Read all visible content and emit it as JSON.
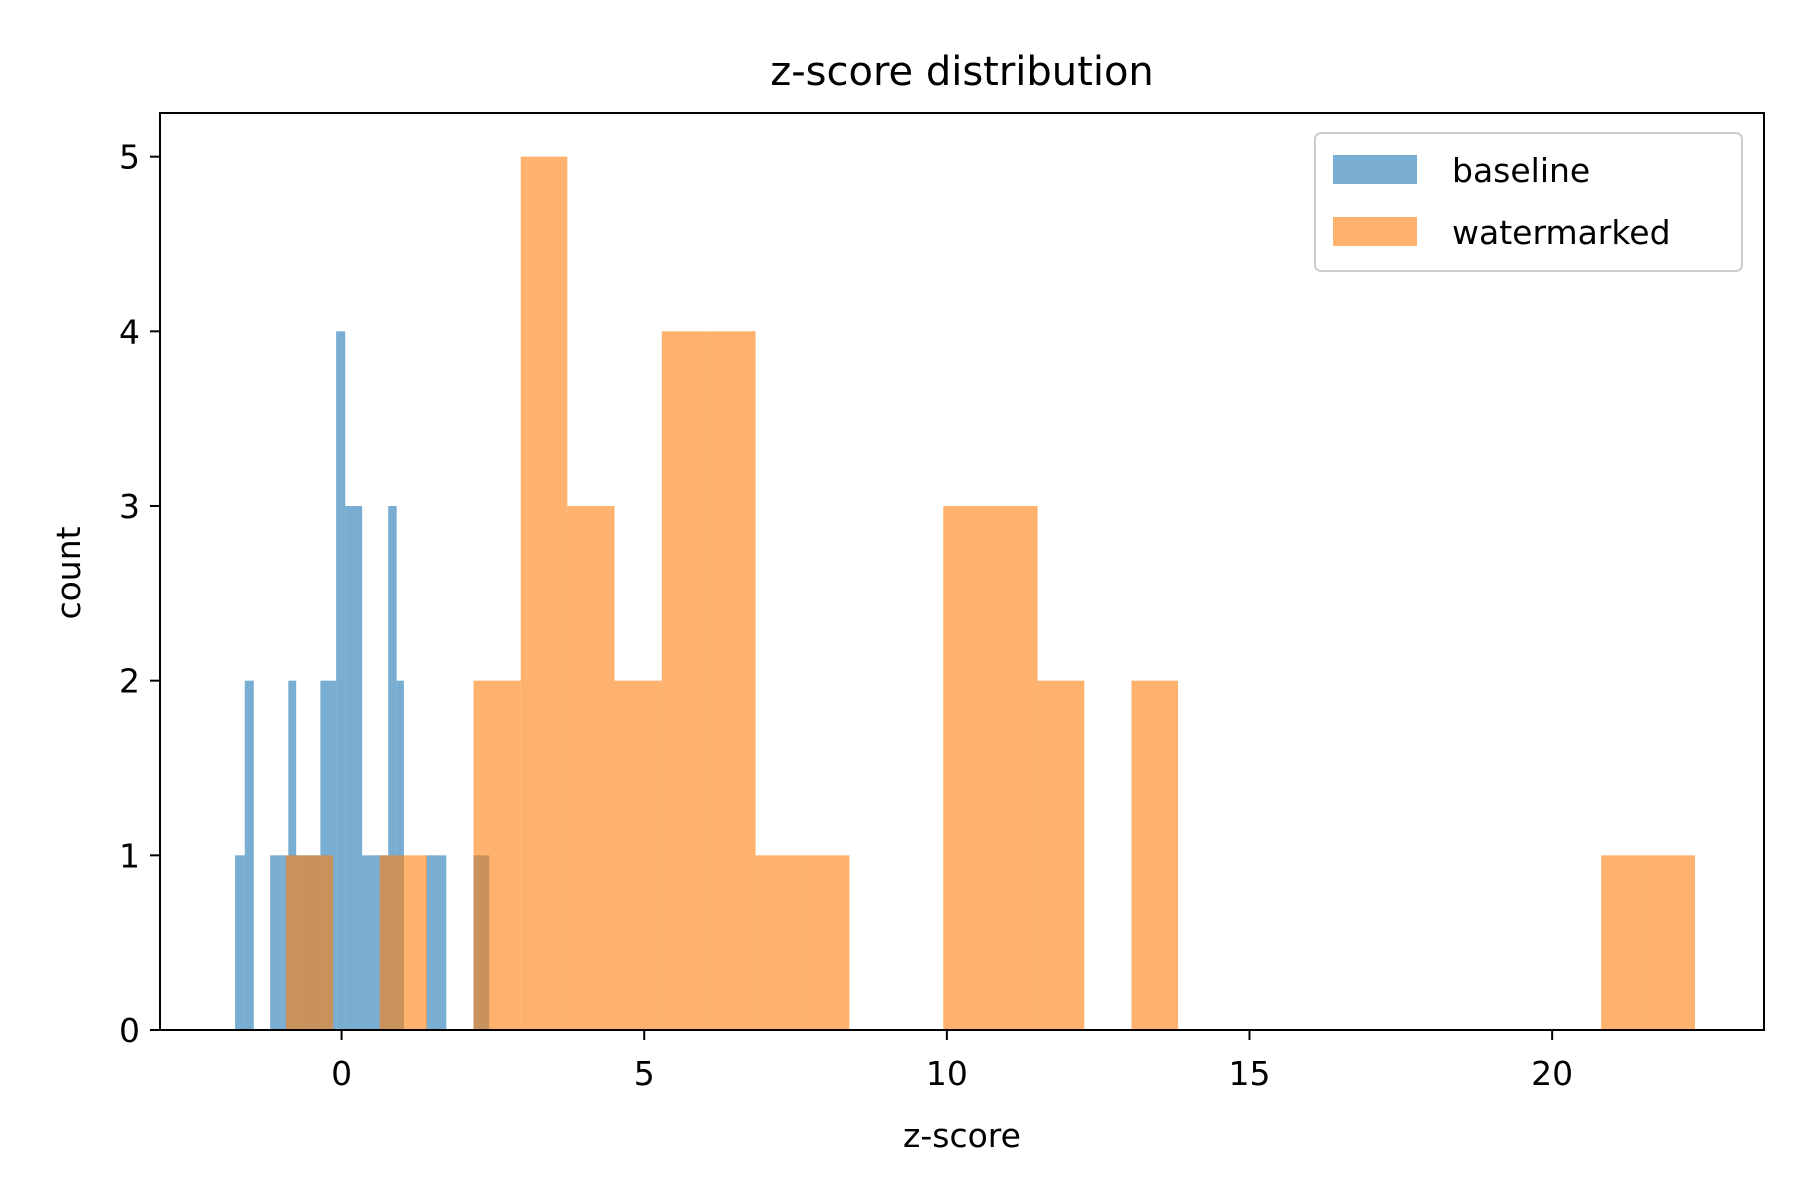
{
  "chart_data": {
    "type": "bar",
    "title": "z-score distribution",
    "xlabel": "z-score",
    "ylabel": "count",
    "xlim": [
      -3,
      23.5
    ],
    "ylim": [
      0,
      5.25
    ],
    "xticks": [
      0,
      5,
      10,
      15,
      20
    ],
    "yticks": [
      0,
      1,
      2,
      3,
      4,
      5
    ],
    "grid": false,
    "legend_position": "top-right",
    "series": [
      {
        "name": "baseline",
        "color": "#1f77b4",
        "opacity": 0.6,
        "bins": [
          {
            "x0": -1.76,
            "x1": -1.6,
            "count": 1
          },
          {
            "x0": -1.6,
            "x1": -1.45,
            "count": 2
          },
          {
            "x0": -1.18,
            "x1": -1.0,
            "count": 1
          },
          {
            "x0": -1.0,
            "x1": -0.88,
            "count": 1
          },
          {
            "x0": -0.88,
            "x1": -0.75,
            "count": 2
          },
          {
            "x0": -0.75,
            "x1": -0.35,
            "count": 1
          },
          {
            "x0": -0.35,
            "x1": -0.09,
            "count": 2
          },
          {
            "x0": -0.09,
            "x1": 0.06,
            "count": 4
          },
          {
            "x0": 0.06,
            "x1": 0.34,
            "count": 3
          },
          {
            "x0": 0.34,
            "x1": 0.77,
            "count": 1
          },
          {
            "x0": 0.77,
            "x1": 0.91,
            "count": 3
          },
          {
            "x0": 0.91,
            "x1": 1.03,
            "count": 2
          },
          {
            "x0": 1.03,
            "x1": 1.4,
            "count": 0
          },
          {
            "x0": 1.4,
            "x1": 1.73,
            "count": 1
          },
          {
            "x0": 2.18,
            "x1": 2.44,
            "count": 1
          }
        ]
      },
      {
        "name": "watermarked",
        "color": "#ff7f0e",
        "opacity": 0.6,
        "bins": [
          {
            "x0": -0.92,
            "x1": -0.14,
            "count": 1
          },
          {
            "x0": 0.63,
            "x1": 1.41,
            "count": 1
          },
          {
            "x0": 2.18,
            "x1": 2.96,
            "count": 2
          },
          {
            "x0": 2.96,
            "x1": 3.73,
            "count": 5
          },
          {
            "x0": 3.73,
            "x1": 4.51,
            "count": 3
          },
          {
            "x0": 4.51,
            "x1": 5.29,
            "count": 2
          },
          {
            "x0": 5.29,
            "x1": 6.06,
            "count": 4
          },
          {
            "x0": 6.06,
            "x1": 6.84,
            "count": 4
          },
          {
            "x0": 6.84,
            "x1": 7.62,
            "count": 1
          },
          {
            "x0": 7.62,
            "x1": 8.39,
            "count": 1
          },
          {
            "x0": 9.94,
            "x1": 10.72,
            "count": 3
          },
          {
            "x0": 10.72,
            "x1": 11.5,
            "count": 3
          },
          {
            "x0": 11.5,
            "x1": 12.27,
            "count": 2
          },
          {
            "x0": 13.05,
            "x1": 13.82,
            "count": 2
          },
          {
            "x0": 20.81,
            "x1": 21.58,
            "count": 1
          },
          {
            "x0": 21.58,
            "x1": 22.36,
            "count": 1
          }
        ]
      }
    ]
  }
}
